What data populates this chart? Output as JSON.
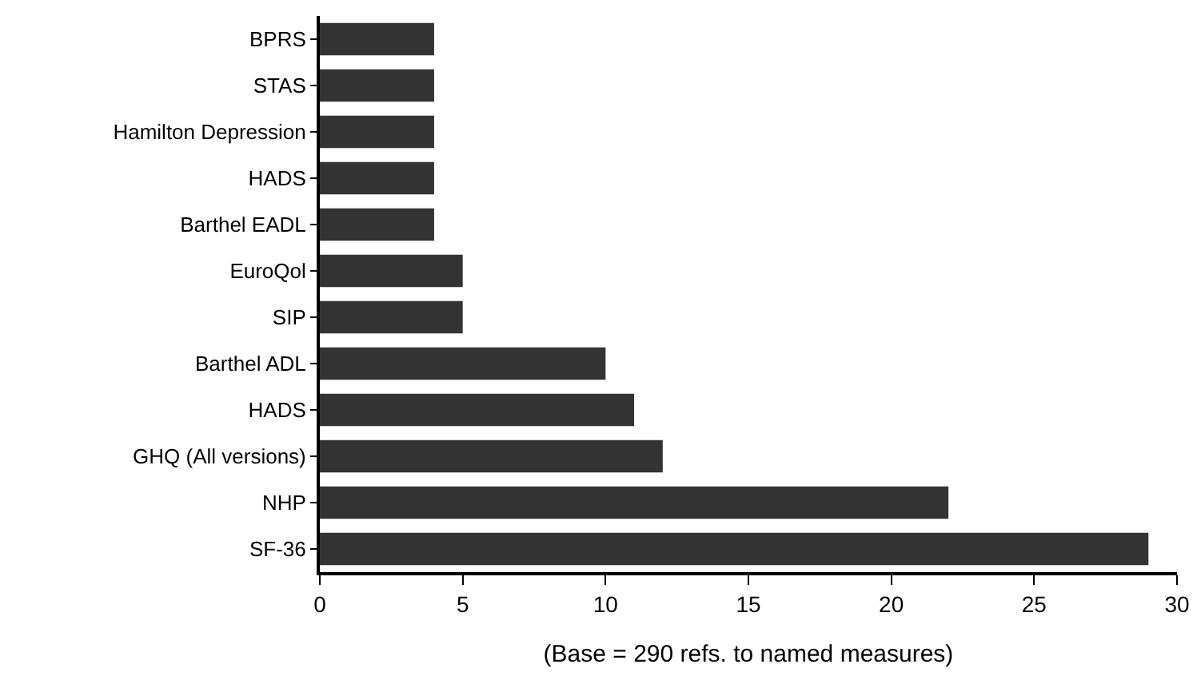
{
  "chart_data": {
    "type": "bar",
    "orientation": "horizontal",
    "categories": [
      "BPRS",
      "STAS",
      "Hamilton Depression",
      "HADS",
      "Barthel EADL",
      "EuroQol",
      "SIP",
      "Barthel ADL",
      "HADS",
      "GHQ (All versions)",
      "NHP",
      "SF-36"
    ],
    "values": [
      4,
      4,
      4,
      4,
      4,
      5,
      5,
      10,
      11,
      12,
      22,
      29
    ],
    "color": "#333333",
    "xlim": [
      0,
      30
    ],
    "xticks": [
      0,
      5,
      10,
      15,
      20,
      25,
      30
    ],
    "xlabel": "(Base = 290 refs. to named measures)",
    "grid": false,
    "legend": false
  }
}
